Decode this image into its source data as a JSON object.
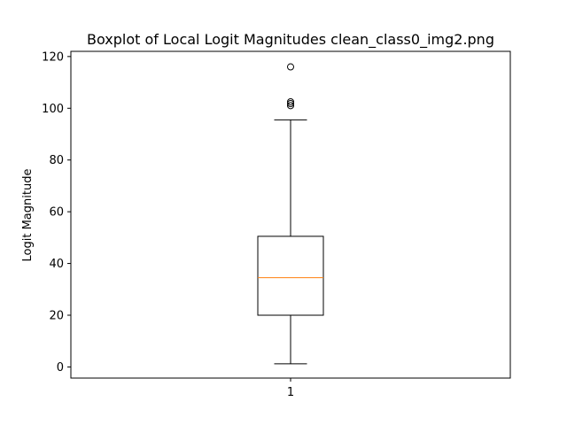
{
  "chart_data": {
    "type": "boxplot",
    "title": "Boxplot of Local Logit Magnitudes clean_class0_img2.png",
    "xlabel": "",
    "ylabel": "Logit Magnitude",
    "ylim": [
      -4.3,
      122
    ],
    "yticks": [
      0,
      20,
      40,
      60,
      80,
      100,
      120
    ],
    "categories": [
      "1"
    ],
    "series": [
      {
        "whisker_low": 1.2,
        "q1": 20,
        "median": 34.5,
        "q3": 50.5,
        "whisker_high": 95.5,
        "outliers": [
          101,
          101.8,
          102.5,
          116
        ]
      }
    ],
    "grid": false,
    "colors": {
      "box": "#000000",
      "median": "#ff7f0e",
      "whisker": "#000000",
      "outlier": "#000000"
    }
  }
}
